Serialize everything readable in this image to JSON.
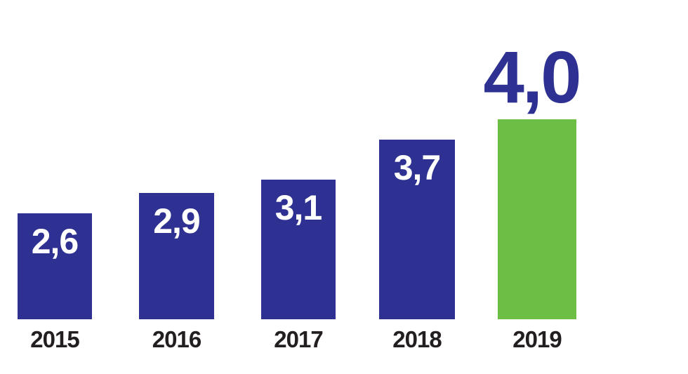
{
  "chart_data": {
    "type": "bar",
    "categories": [
      "2015",
      "2016",
      "2017",
      "2018",
      "2019"
    ],
    "values": [
      2.6,
      2.9,
      3.1,
      3.7,
      4.0
    ],
    "value_labels": [
      "2,6",
      "2,9",
      "3,1",
      "3,7",
      "4,0"
    ],
    "decimal_separator": ",",
    "title": "",
    "xlabel": "",
    "ylabel": "",
    "ylim": [
      0,
      4.5
    ],
    "grid": false,
    "legend": false,
    "axes_hidden": true,
    "highlight_index": 4,
    "value_label_position": [
      "inside-top",
      "inside-top",
      "inside-top",
      "inside-top",
      "above"
    ],
    "colors": {
      "bar_default": "#2E3192",
      "bar_highlight": "#6CBE45",
      "value_label_inside": "#FFFFFF",
      "value_label_above": "#2E3192",
      "axis_label": "#231F20",
      "background": "#FFFFFF"
    }
  }
}
